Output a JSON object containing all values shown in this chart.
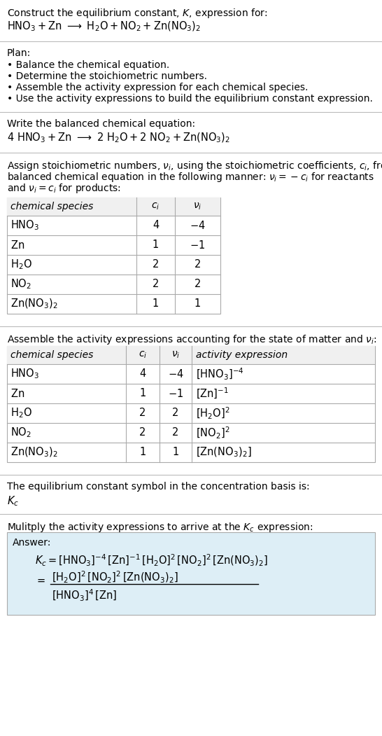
{
  "bg_color": "#ffffff",
  "text_color": "#000000",
  "section_bg": "#ddeef6",
  "title_line1": "Construct the equilibrium constant, $K$, expression for:",
  "title_line2": "$\\mathrm{HNO_3 + Zn\\ \\longrightarrow\\ H_2O + NO_2 + Zn(NO_3)_2}$",
  "plan_header": "Plan:",
  "plan_bullets": [
    "• Balance the chemical equation.",
    "• Determine the stoichiometric numbers.",
    "• Assemble the activity expression for each chemical species.",
    "• Use the activity expressions to build the equilibrium constant expression."
  ],
  "balanced_header": "Write the balanced chemical equation:",
  "balanced_eq": "$\\mathrm{4\\ HNO_3 + Zn\\ \\longrightarrow\\ 2\\ H_2O + 2\\ NO_2 + Zn(NO_3)_2}$",
  "stoich_intro": "Assign stoichiometric numbers, $\\nu_i$, using the stoichiometric coefficients, $c_i$, from the\nbalanced chemical equation in the following manner: $\\nu_i = -c_i$ for reactants\nand $\\nu_i = c_i$ for products:",
  "table1_col_headers": [
    "chemical species",
    "$c_i$",
    "$\\nu_i$"
  ],
  "table1_rows": [
    [
      "$\\mathrm{HNO_3}$",
      "4",
      "$-4$"
    ],
    [
      "$\\mathrm{Zn}$",
      "1",
      "$-1$"
    ],
    [
      "$\\mathrm{H_2O}$",
      "2",
      "2"
    ],
    [
      "$\\mathrm{NO_2}$",
      "2",
      "2"
    ],
    [
      "$\\mathrm{Zn(NO_3)_2}$",
      "1",
      "1"
    ]
  ],
  "activity_intro": "Assemble the activity expressions accounting for the state of matter and $\\nu_i$:",
  "table2_col_headers": [
    "chemical species",
    "$c_i$",
    "$\\nu_i$",
    "activity expression"
  ],
  "table2_rows": [
    [
      "$\\mathrm{HNO_3}$",
      "4",
      "$-4$",
      "$[\\mathrm{HNO_3}]^{-4}$"
    ],
    [
      "$\\mathrm{Zn}$",
      "1",
      "$-1$",
      "$[\\mathrm{Zn}]^{-1}$"
    ],
    [
      "$\\mathrm{H_2O}$",
      "2",
      "2",
      "$[\\mathrm{H_2O}]^{2}$"
    ],
    [
      "$\\mathrm{NO_2}$",
      "2",
      "2",
      "$[\\mathrm{NO_2}]^{2}$"
    ],
    [
      "$\\mathrm{Zn(NO_3)_2}$",
      "1",
      "1",
      "$[\\mathrm{Zn(NO_3)_2}]$"
    ]
  ],
  "kc_intro": "The equilibrium constant symbol in the concentration basis is:",
  "kc_symbol": "$K_c$",
  "multiply_intro": "Mulitply the activity expressions to arrive at the $K_c$ expression:",
  "answer_label": "Answer:",
  "answer_line1": "$K_c = [\\mathrm{HNO_3}]^{-4}\\, [\\mathrm{Zn}]^{-1}\\, [\\mathrm{H_2O}]^{2}\\, [\\mathrm{NO_2}]^{2}\\, [\\mathrm{Zn(NO_3)_2}]$",
  "answer_num": "$[\\mathrm{H_2O}]^{2}\\, [\\mathrm{NO_2}]^{2}\\, [\\mathrm{Zn(NO_3)_2}]$",
  "answer_den": "$[\\mathrm{HNO_3}]^{4}\\, [\\mathrm{Zn}]$"
}
